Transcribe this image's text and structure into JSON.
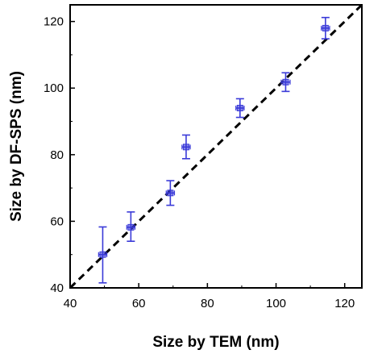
{
  "chart_data": {
    "type": "scatter",
    "xlabel": "Size by TEM (nm)",
    "ylabel": "Size by DF-SPS (nm)",
    "xlim": [
      40,
      125
    ],
    "ylim": [
      40,
      125
    ],
    "xticks": [
      40,
      60,
      80,
      100,
      120
    ],
    "yticks": [
      40,
      60,
      80,
      100,
      120
    ],
    "series": [
      {
        "points": [
          {
            "x": 49.5,
            "y": 50,
            "xerr": 1.2,
            "yerr_low": 8.5,
            "yerr_high": 8.3
          },
          {
            "x": 57.7,
            "y": 58.2,
            "xerr": 1.2,
            "yerr_low": 4.2,
            "yerr_high": 4.6
          },
          {
            "x": 69.2,
            "y": 68.5,
            "xerr": 1.2,
            "yerr_low": 3.7,
            "yerr_high": 3.7
          },
          {
            "x": 73.8,
            "y": 82.3,
            "xerr": 1.2,
            "yerr_low": 3.5,
            "yerr_high": 3.6
          },
          {
            "x": 89.5,
            "y": 94,
            "xerr": 1.2,
            "yerr_low": 2.8,
            "yerr_high": 2.8
          },
          {
            "x": 102.8,
            "y": 101.8,
            "xerr": 1.3,
            "yerr_low": 2.8,
            "yerr_high": 2.8
          },
          {
            "x": 114.4,
            "y": 118,
            "xerr": 1.2,
            "yerr_low": 3.2,
            "yerr_high": 3.2
          }
        ]
      }
    ],
    "reference_line": {
      "style": "dashed",
      "from": [
        40,
        40
      ],
      "to": [
        125,
        125
      ]
    },
    "grid": false,
    "colors": {
      "marker": "#3a3ad8",
      "reference_line": "#000000",
      "axes": "#000000"
    }
  }
}
